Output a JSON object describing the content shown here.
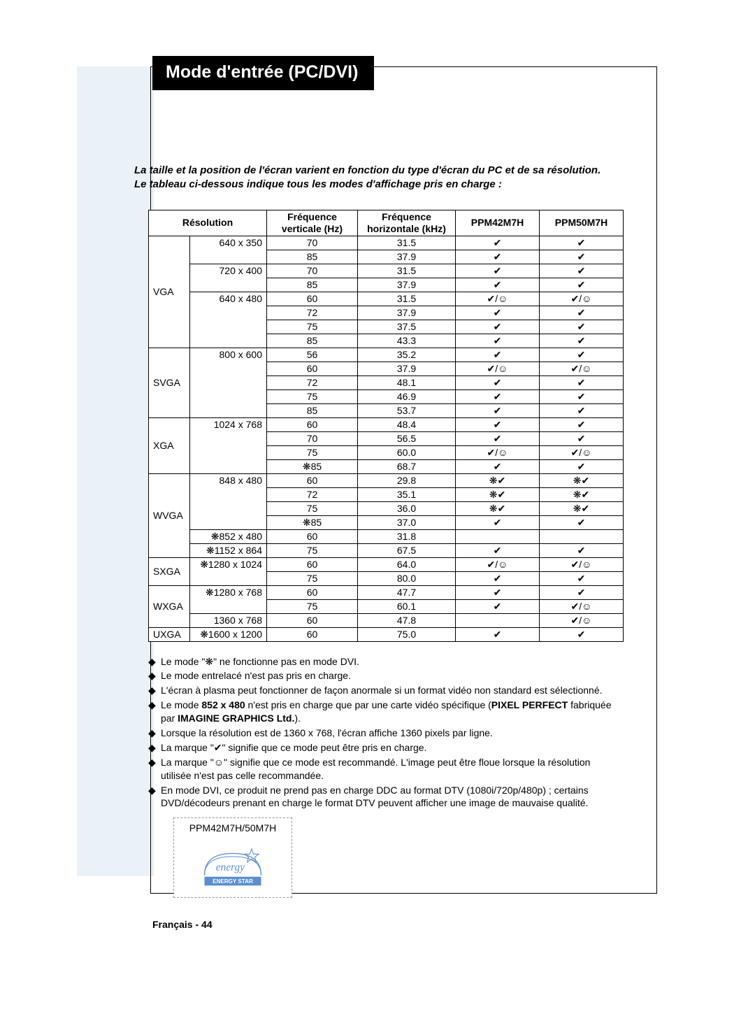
{
  "title": "Mode d'entrée (PC/DVI)",
  "intro_line1": "La taille et la position de l'écran varient en fonction du type d'écran du PC et de sa résolution.",
  "intro_line2": "Le tableau ci-dessous indique tous les modes d'affichage pris en charge :",
  "table": {
    "headers": {
      "resolution": "Résolution",
      "vfreq_l1": "Fréquence",
      "vfreq_l2": "verticale (Hz)",
      "hfreq_l1": "Fréquence",
      "hfreq_l2": "horizontale (kHz)",
      "m1": "PPM42M7H",
      "m2": "PPM50M7H"
    },
    "groups": [
      {
        "cat": "VGA",
        "reslist": [
          {
            "res": "640 x 350",
            "rows": [
              {
                "v": "70",
                "h": "31.5",
                "a": "✔",
                "b": "✔"
              },
              {
                "v": "85",
                "h": "37.9",
                "a": "✔",
                "b": "✔"
              }
            ]
          },
          {
            "res": "720 x 400",
            "rows": [
              {
                "v": "70",
                "h": "31.5",
                "a": "✔",
                "b": "✔"
              },
              {
                "v": "85",
                "h": "37.9",
                "a": "✔",
                "b": "✔"
              }
            ]
          },
          {
            "res": "640 x 480",
            "rows": [
              {
                "v": "60",
                "h": "31.5",
                "a": "✔/☺",
                "b": "✔/☺"
              },
              {
                "v": "72",
                "h": "37.9",
                "a": "✔",
                "b": "✔"
              },
              {
                "v": "75",
                "h": "37.5",
                "a": "✔",
                "b": "✔"
              },
              {
                "v": "85",
                "h": "43.3",
                "a": "✔",
                "b": "✔"
              }
            ]
          }
        ]
      },
      {
        "cat": "SVGA",
        "reslist": [
          {
            "res": "800 x 600",
            "rows": [
              {
                "v": "56",
                "h": "35.2",
                "a": "✔",
                "b": "✔"
              },
              {
                "v": "60",
                "h": "37.9",
                "a": "✔/☺",
                "b": "✔/☺"
              },
              {
                "v": "72",
                "h": "48.1",
                "a": "✔",
                "b": "✔"
              },
              {
                "v": "75",
                "h": "46.9",
                "a": "✔",
                "b": "✔"
              },
              {
                "v": "85",
                "h": "53.7",
                "a": "✔",
                "b": "✔"
              }
            ]
          }
        ]
      },
      {
        "cat": "XGA",
        "reslist": [
          {
            "res": "1024 x 768",
            "rows": [
              {
                "v": "60",
                "h": "48.4",
                "a": "✔",
                "b": "✔"
              },
              {
                "v": "70",
                "h": "56.5",
                "a": "✔",
                "b": "✔"
              },
              {
                "v": "75",
                "h": "60.0",
                "a": "✔/☺",
                "b": "✔/☺"
              },
              {
                "v": "❋85",
                "h": "68.7",
                "a": "✔",
                "b": "✔"
              }
            ]
          }
        ]
      },
      {
        "cat": "WVGA",
        "reslist": [
          {
            "res": "848 x 480",
            "rows": [
              {
                "v": "60",
                "h": "29.8",
                "a": "❋✔",
                "b": "❋✔"
              },
              {
                "v": "72",
                "h": "35.1",
                "a": "❋✔",
                "b": "❋✔"
              },
              {
                "v": "75",
                "h": "36.0",
                "a": "❋✔",
                "b": "❋✔"
              },
              {
                "v": "❋85",
                "h": "37.0",
                "a": "✔",
                "b": "✔"
              }
            ]
          },
          {
            "res": "❋852 x 480",
            "rows": [
              {
                "v": "60",
                "h": "31.8",
                "a": "",
                "b": ""
              }
            ]
          },
          {
            "res": "❋1152 x 864",
            "rows": [
              {
                "v": "75",
                "h": "67.5",
                "a": "✔",
                "b": "✔"
              }
            ]
          }
        ]
      },
      {
        "cat": "SXGA",
        "reslist": [
          {
            "res": "❋1280 x 1024",
            "rows": [
              {
                "v": "60",
                "h": "64.0",
                "a": "✔/☺",
                "b": "✔/☺"
              },
              {
                "v": "75",
                "h": "80.0",
                "a": "✔",
                "b": "✔"
              }
            ]
          }
        ]
      },
      {
        "cat": "WXGA",
        "reslist": [
          {
            "res": "❋1280 x 768",
            "rows": [
              {
                "v": "60",
                "h": "47.7",
                "a": "✔",
                "b": "✔"
              },
              {
                "v": "75",
                "h": "60.1",
                "a": "✔",
                "b": "✔/☺"
              }
            ]
          },
          {
            "res": "1360 x 768",
            "rows": [
              {
                "v": "60",
                "h": "47.8",
                "a": "",
                "b": "✔/☺"
              }
            ]
          }
        ]
      },
      {
        "cat": "UXGA",
        "reslist": [
          {
            "res": "❋1600 x 1200",
            "rows": [
              {
                "v": "60",
                "h": "75.0",
                "a": "✔",
                "b": "✔"
              }
            ]
          }
        ]
      }
    ]
  },
  "notes": [
    {
      "type": "plain",
      "text": "Le mode \"❋\" ne fonctionne pas en mode DVI."
    },
    {
      "type": "plain",
      "text": "Le mode entrelacé n'est pas pris en charge."
    },
    {
      "type": "plain",
      "text": "L'écran à plasma peut fonctionner de façon anormale si un format vidéo non standard est sélectionné."
    },
    {
      "type": "rich",
      "parts": [
        {
          "text": "Le mode ",
          "bold": false
        },
        {
          "text": "852 x 480",
          "bold": true
        },
        {
          "text": " n'est pris en charge que par une carte vidéo spécifique (",
          "bold": false
        },
        {
          "text": "PIXEL PERFECT",
          "bold": true
        },
        {
          "text": " fabriquée par ",
          "bold": false
        },
        {
          "text": "IMAGINE GRAPHICS Ltd.",
          "bold": true
        },
        {
          "text": ").",
          "bold": false
        }
      ]
    },
    {
      "type": "plain",
      "text": "Lorsque la résolution est de 1360 x 768, l'écran affiche 1360 pixels par ligne."
    },
    {
      "type": "plain",
      "text": "La marque \"✔\" signifie que ce mode peut être pris en charge."
    },
    {
      "type": "plain",
      "text": "La marque \"☺\" signifie que ce mode est recommandé. L'image peut être floue lorsque la résolution utilisée n'est pas celle recommandée."
    },
    {
      "type": "plain",
      "text": "En mode DVI, ce produit ne prend pas en charge DDC au format DTV (1080i/720p/480p) ; certains DVD/décodeurs prenant en charge le format DTV peuvent afficher une image de mauvaise qualité."
    }
  ],
  "badge_label": "PPM42M7H/50M7H",
  "energy_star_script": "energy",
  "energy_star_label": "ENERGY STAR",
  "footer": "Français - 44",
  "bullet": "◆",
  "colors": {
    "title_bg": "#000000",
    "title_fg": "#ffffff",
    "side_panel": "#eaf2f8",
    "logo_blue": "#5b8fcf",
    "logo_border": "#5b8fcf"
  }
}
